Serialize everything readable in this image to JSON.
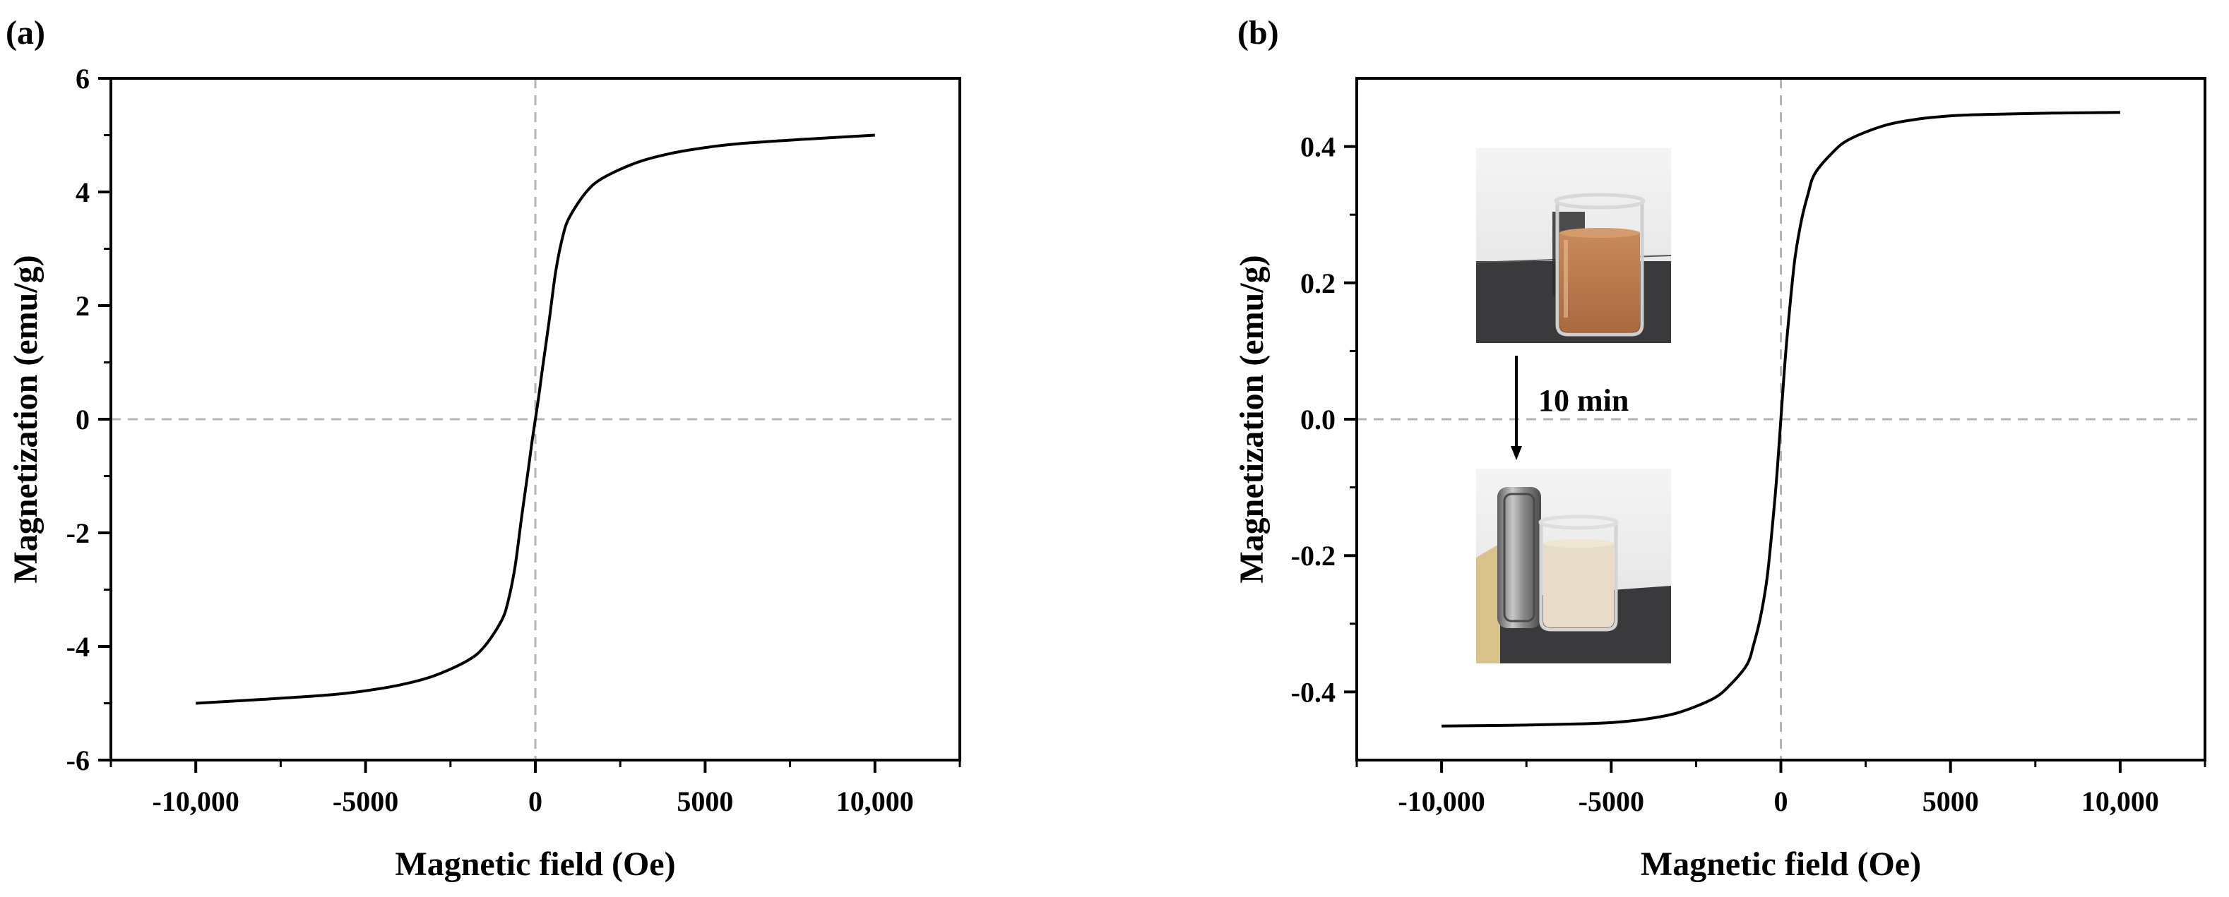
{
  "chart_data": [
    {
      "panel": "(a)",
      "type": "line",
      "xlabel": "Magnetic field (Oe)",
      "ylabel": "Magnetization (emu/g)",
      "xlim": [
        -12500,
        12500
      ],
      "ylim": [
        -6,
        6
      ],
      "xticks": [
        -10000,
        -5000,
        0,
        5000,
        10000
      ],
      "xtick_labels": [
        "-10,000",
        "-5000",
        "0",
        "5000",
        "10,000"
      ],
      "yticks": [
        -6,
        -4,
        -2,
        0,
        2,
        4,
        6
      ],
      "ytick_labels": [
        "-6",
        "-4",
        "-2",
        "0",
        "2",
        "4",
        "6"
      ],
      "grid": false,
      "zero_lines": "dashed",
      "series": [
        {
          "x": [
            -10000,
            -8000,
            -6000,
            -5000,
            -4000,
            -3000,
            -2000,
            -1500,
            -1000,
            -800,
            -600,
            -400,
            -200,
            -100,
            0,
            100,
            200,
            400,
            600,
            800,
            1000,
            1500,
            2000,
            3000,
            4000,
            5000,
            6000,
            8000,
            10000
          ],
          "y": [
            -5.0,
            -4.93,
            -4.85,
            -4.78,
            -4.68,
            -4.52,
            -4.25,
            -4.0,
            -3.55,
            -3.2,
            -2.6,
            -1.7,
            -0.85,
            -0.4,
            0,
            0.4,
            0.85,
            1.7,
            2.6,
            3.2,
            3.55,
            4.0,
            4.25,
            4.52,
            4.68,
            4.78,
            4.85,
            4.93,
            5.0
          ]
        }
      ]
    },
    {
      "panel": "(b)",
      "type": "line",
      "xlabel": "Magnetic field (Oe)",
      "ylabel": "Magnetization (emu/g)",
      "xlim": [
        -12500,
        12500
      ],
      "ylim": [
        -0.5,
        0.5
      ],
      "xticks": [
        -10000,
        -5000,
        0,
        5000,
        10000
      ],
      "xtick_labels": [
        "-10,000",
        "-5000",
        "0",
        "5000",
        "10,000"
      ],
      "yticks": [
        -0.4,
        -0.2,
        0.0,
        0.2,
        0.4
      ],
      "ytick_labels": [
        "-0.4",
        "-0.2",
        "0.0",
        "0.2",
        "0.4"
      ],
      "grid": false,
      "zero_lines": "dashed",
      "series": [
        {
          "x": [
            -10000,
            -8000,
            -6000,
            -5000,
            -4000,
            -3000,
            -2000,
            -1500,
            -1000,
            -800,
            -600,
            -400,
            -200,
            -100,
            0,
            100,
            200,
            400,
            600,
            800,
            1000,
            1500,
            2000,
            3000,
            4000,
            5000,
            6000,
            8000,
            10000
          ],
          "y": [
            -0.45,
            -0.449,
            -0.447,
            -0.445,
            -0.44,
            -0.43,
            -0.41,
            -0.39,
            -0.36,
            -0.33,
            -0.29,
            -0.23,
            -0.13,
            -0.07,
            0,
            0.07,
            0.13,
            0.23,
            0.29,
            0.33,
            0.36,
            0.39,
            0.41,
            0.43,
            0.44,
            0.445,
            0.447,
            0.449,
            0.45
          ]
        }
      ],
      "inset": {
        "label": "10 min",
        "photo_top": "beaker with brown-orange turbid suspension",
        "photo_bottom": "beaker with clarified liquid beside a magnet",
        "colors": {
          "liquid_before": "#b97a4e",
          "liquid_after": "#e8dcc8",
          "bench": "#3a3a3c",
          "wall": "#ececec",
          "magnet": "#8c8c8c",
          "plate": "#d9c38a"
        }
      }
    }
  ]
}
